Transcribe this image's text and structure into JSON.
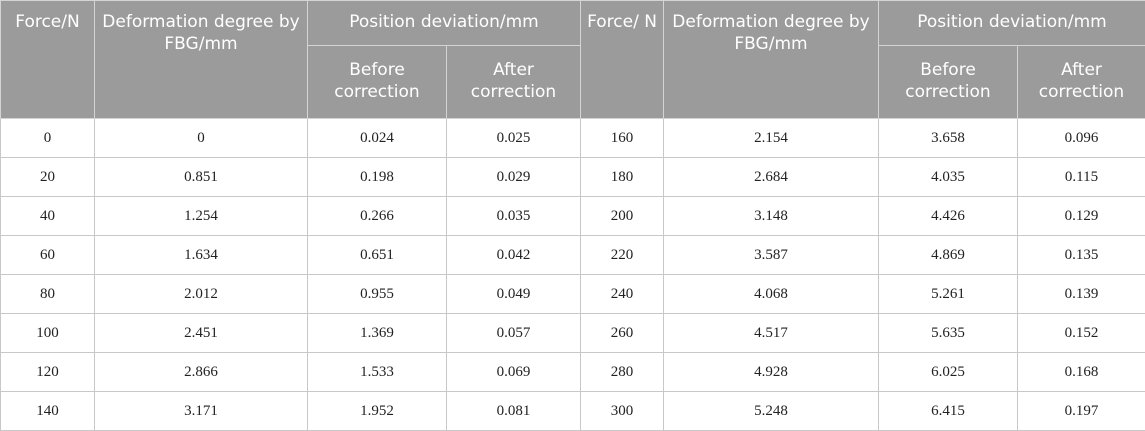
{
  "headers": {
    "force": "Force/N",
    "deformation": "Deformation degree by FBG/mm",
    "position_deviation": "Position deviation/mm",
    "before": "Before correction",
    "after": "After correction",
    "force2": "Force/ N",
    "deformation2": "Deformation degree by FBG/mm",
    "position_deviation2": "Position deviation/mm",
    "before2": "Before correction",
    "after2": "After correction"
  },
  "rows": [
    [
      "0",
      "0",
      "0.024",
      "0.025",
      "160",
      "2.154",
      "3.658",
      "0.096"
    ],
    [
      "20",
      "0.851",
      "0.198",
      "0.029",
      "180",
      "2.684",
      "4.035",
      "0.115"
    ],
    [
      "40",
      "1.254",
      "0.266",
      "0.035",
      "200",
      "3.148",
      "4.426",
      "0.129"
    ],
    [
      "60",
      "1.634",
      "0.651",
      "0.042",
      "220",
      "3.587",
      "4.869",
      "0.135"
    ],
    [
      "80",
      "2.012",
      "0.955",
      "0.049",
      "240",
      "4.068",
      "5.261",
      "0.139"
    ],
    [
      "100",
      "2.451",
      "1.369",
      "0.057",
      "260",
      "4.517",
      "5.635",
      "0.152"
    ],
    [
      "120",
      "2.866",
      "1.533",
      "0.069",
      "280",
      "4.928",
      "6.025",
      "0.168"
    ],
    [
      "140",
      "3.171",
      "1.952",
      "0.081",
      "300",
      "5.248",
      "6.415",
      "0.197"
    ]
  ]
}
